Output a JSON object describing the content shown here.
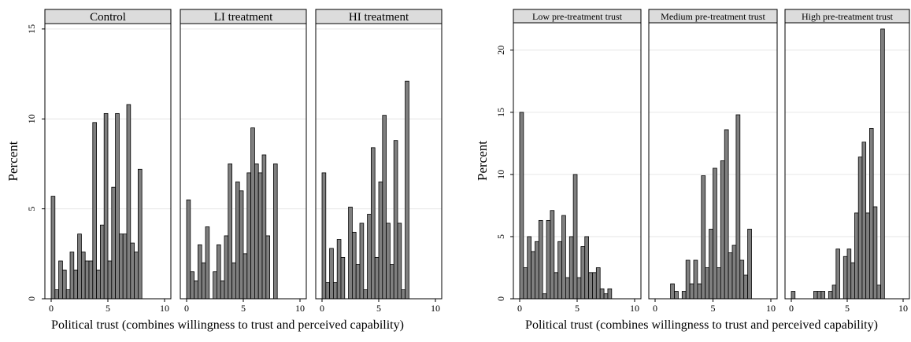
{
  "chart_data": [
    {
      "type": "bar",
      "xlabel": "Political trust (combines willingness to trust and perceived capability)",
      "ylabel": "Percent",
      "xlim": [
        0,
        10
      ],
      "ylim": [
        0,
        15.3
      ],
      "x_ticks": [
        0,
        5,
        10
      ],
      "y_ticks": [
        0,
        5,
        10,
        15
      ],
      "bar_width": 0.333,
      "panels": [
        {
          "title": "Control",
          "x": [
            0.167,
            0.5,
            0.833,
            1.167,
            1.5,
            1.833,
            2.167,
            2.5,
            2.833,
            3.167,
            3.5,
            3.833,
            4.167,
            4.5,
            4.833,
            5.167,
            5.5,
            5.833,
            6.167,
            6.5,
            6.833,
            7.167,
            7.5,
            7.833,
            8.167,
            8.5,
            8.833,
            9.167,
            9.5,
            9.833
          ],
          "values": [
            5.7,
            0.5,
            2.1,
            1.6,
            0.5,
            2.6,
            1.6,
            3.6,
            2.6,
            2.1,
            2.1,
            9.8,
            1.6,
            4.1,
            10.3,
            2.1,
            6.2,
            10.3,
            3.6,
            3.6,
            10.8,
            3.1,
            2.6,
            7.2,
            0,
            0,
            0,
            0,
            0,
            0
          ]
        },
        {
          "title": "LI treatment",
          "x": [
            0.167,
            0.5,
            0.833,
            1.167,
            1.5,
            1.833,
            2.167,
            2.5,
            2.833,
            3.167,
            3.5,
            3.833,
            4.167,
            4.5,
            4.833,
            5.167,
            5.5,
            5.833,
            6.167,
            6.5,
            6.833,
            7.167,
            7.5,
            7.833,
            8.167,
            8.5,
            8.833,
            9.167,
            9.5,
            9.833
          ],
          "values": [
            5.5,
            1.5,
            1.0,
            3.0,
            2.0,
            4.0,
            0,
            1.5,
            3.0,
            1.0,
            3.5,
            7.5,
            2.0,
            6.5,
            6.0,
            2.5,
            7.0,
            9.5,
            7.5,
            7.0,
            8.0,
            3.5,
            0,
            7.5,
            0,
            0,
            0,
            0,
            0,
            0
          ]
        },
        {
          "title": "HI treatment",
          "x": [
            0.167,
            0.5,
            0.833,
            1.167,
            1.5,
            1.833,
            2.167,
            2.5,
            2.833,
            3.167,
            3.5,
            3.833,
            4.167,
            4.5,
            4.833,
            5.167,
            5.5,
            5.833,
            6.167,
            6.5,
            6.833,
            7.167,
            7.5,
            7.833,
            8.167,
            8.5,
            8.833,
            9.167,
            9.5,
            9.833
          ],
          "values": [
            7.0,
            0.9,
            2.8,
            0.9,
            3.3,
            2.3,
            0,
            5.1,
            3.7,
            1.9,
            4.2,
            0.5,
            4.7,
            8.4,
            2.3,
            6.5,
            10.2,
            4.2,
            1.9,
            8.8,
            4.2,
            0.5,
            12.1,
            0,
            0,
            0,
            0,
            0,
            0,
            0
          ]
        }
      ]
    },
    {
      "type": "bar",
      "xlabel": "Political trust (combines willingness to trust and perceived capability)",
      "ylabel": "Percent",
      "xlim": [
        0,
        10
      ],
      "ylim": [
        0,
        22.2
      ],
      "x_ticks": [
        0,
        5,
        10
      ],
      "y_ticks": [
        0,
        5,
        10,
        15,
        20
      ],
      "bar_width": 0.333,
      "panels": [
        {
          "title": "Low pre-treatment trust",
          "x": [
            0.167,
            0.5,
            0.833,
            1.167,
            1.5,
            1.833,
            2.167,
            2.5,
            2.833,
            3.167,
            3.5,
            3.833,
            4.167,
            4.5,
            4.833,
            5.167,
            5.5,
            5.833,
            6.167,
            6.5,
            6.833,
            7.167,
            7.5,
            7.833,
            8.167,
            8.5,
            8.833,
            9.167,
            9.5,
            9.833
          ],
          "values": [
            15.0,
            2.5,
            5.0,
            3.8,
            4.6,
            6.3,
            0.4,
            6.3,
            7.1,
            2.1,
            4.6,
            6.7,
            1.7,
            5.0,
            10.0,
            1.7,
            4.2,
            5.0,
            2.1,
            2.1,
            2.5,
            0.8,
            0.4,
            0.8,
            0,
            0,
            0,
            0,
            0,
            0
          ]
        },
        {
          "title": "Medium pre-treatment trust",
          "x": [
            0.167,
            0.5,
            0.833,
            1.167,
            1.5,
            1.833,
            2.167,
            2.5,
            2.833,
            3.167,
            3.5,
            3.833,
            4.167,
            4.5,
            4.833,
            5.167,
            5.5,
            5.833,
            6.167,
            6.5,
            6.833,
            7.167,
            7.5,
            7.833,
            8.167,
            8.5,
            8.833,
            9.167,
            9.5,
            9.833
          ],
          "values": [
            0,
            0,
            0,
            0,
            1.2,
            0.6,
            0,
            0.6,
            3.1,
            1.2,
            3.1,
            1.2,
            9.9,
            2.5,
            5.6,
            10.5,
            2.5,
            11.1,
            13.6,
            3.7,
            4.3,
            14.8,
            3.1,
            1.9,
            5.6,
            0,
            0,
            0,
            0,
            0
          ]
        },
        {
          "title": "High pre-treatment trust",
          "x": [
            0.167,
            0.5,
            0.833,
            1.167,
            1.5,
            1.833,
            2.167,
            2.5,
            2.833,
            3.167,
            3.5,
            3.833,
            4.167,
            4.5,
            4.833,
            5.167,
            5.5,
            5.833,
            6.167,
            6.5,
            6.833,
            7.167,
            7.5,
            7.833,
            8.167,
            8.5,
            8.833,
            9.167,
            9.5,
            9.833
          ],
          "values": [
            0.6,
            0,
            0,
            0,
            0,
            0,
            0.6,
            0.6,
            0.6,
            0,
            0.6,
            1.1,
            4.0,
            0,
            3.4,
            4.0,
            2.9,
            6.9,
            11.4,
            12.6,
            6.9,
            13.7,
            7.4,
            1.1,
            21.7,
            0,
            0,
            0,
            0,
            0
          ]
        }
      ]
    }
  ]
}
